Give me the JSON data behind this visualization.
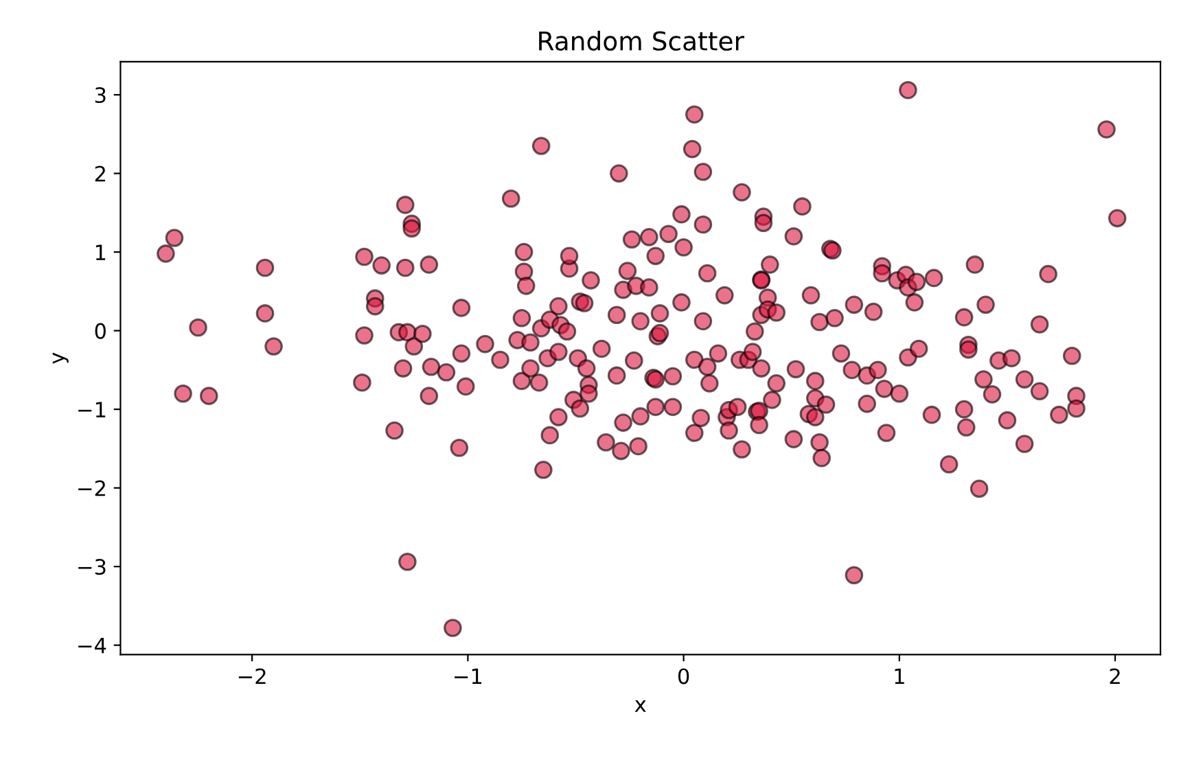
{
  "chart_data": {
    "type": "scatter",
    "title": "Random Scatter",
    "xlabel": "x",
    "ylabel": "y",
    "series": [
      {
        "color": "#dc143c",
        "x": [
          -2.4,
          -2.36,
          -2.32,
          -2.25,
          -2.2,
          -1.94,
          -1.94,
          -1.9,
          -1.49,
          -1.48,
          -1.48,
          -1.43,
          -1.43,
          -1.4,
          -1.34,
          -1.32,
          -1.28,
          -1.29,
          -1.29,
          -1.28,
          -1.26,
          -1.26,
          -1.25,
          -1.21,
          -1.18,
          -1.18,
          -1.3,
          -1.17,
          -1.1,
          -1.07,
          -1.03,
          -1.04,
          -1.03,
          -1.01,
          -0.92,
          -0.85,
          -0.8,
          -0.77,
          -0.75,
          -0.75,
          -0.74,
          -0.74,
          -0.73,
          -0.71,
          -0.71,
          -0.67,
          -0.66,
          -0.66,
          -0.65,
          -0.63,
          -0.62,
          -0.62,
          -0.58,
          -0.58,
          -0.58,
          -0.57,
          -0.54,
          -0.53,
          -0.53,
          -0.51,
          -0.49,
          -0.48,
          -0.48,
          -0.46,
          -0.45,
          -0.44,
          -0.44,
          -0.43,
          -0.38,
          -0.36,
          -0.31,
          -0.31,
          -0.3,
          -0.29,
          -0.28,
          -0.28,
          -0.26,
          -0.24,
          -0.23,
          -0.22,
          -0.21,
          -0.2,
          -0.2,
          -0.16,
          -0.16,
          -0.14,
          -0.13,
          -0.13,
          -0.13,
          -0.12,
          -0.11,
          -0.11,
          -0.07,
          -0.05,
          -0.05,
          -0.01,
          -0.01,
          0.0,
          0.04,
          0.05,
          0.05,
          0.05,
          0.08,
          0.09,
          0.09,
          0.09,
          0.11,
          0.11,
          0.12,
          0.16,
          0.19,
          0.2,
          0.21,
          0.21,
          0.25,
          0.26,
          0.27,
          0.27,
          0.3,
          0.32,
          0.33,
          0.34,
          0.35,
          0.35,
          0.36,
          0.36,
          0.36,
          0.36,
          0.37,
          0.37,
          0.39,
          0.39,
          0.4,
          0.41,
          0.43,
          0.43,
          0.51,
          0.51,
          0.52,
          0.55,
          0.58,
          0.59,
          0.61,
          0.61,
          0.61,
          0.63,
          0.63,
          0.64,
          0.66,
          0.68,
          0.69,
          0.7,
          0.73,
          0.78,
          0.79,
          0.79,
          0.85,
          0.85,
          0.88,
          0.9,
          0.92,
          0.92,
          0.93,
          0.94,
          0.99,
          1.0,
          1.03,
          1.04,
          1.04,
          1.04,
          1.07,
          1.08,
          1.09,
          1.15,
          1.16,
          1.23,
          1.3,
          1.3,
          1.31,
          1.32,
          1.32,
          1.35,
          1.37,
          1.39,
          1.4,
          1.43,
          1.46,
          1.5,
          1.52,
          1.58,
          1.58,
          1.65,
          1.65,
          1.69,
          1.74,
          1.8,
          1.82,
          1.82,
          1.96,
          2.01
        ],
        "values": [
          0.98,
          1.18,
          -0.8,
          0.04,
          -0.83,
          0.8,
          0.22,
          -0.2,
          -0.66,
          -0.06,
          0.94,
          0.41,
          0.31,
          0.83,
          -1.27,
          -0.02,
          -0.02,
          1.6,
          0.8,
          -2.94,
          1.36,
          1.3,
          -0.2,
          -0.04,
          0.84,
          -0.83,
          -0.48,
          -0.46,
          -0.53,
          -3.78,
          0.29,
          -1.49,
          -0.29,
          -0.71,
          -0.17,
          -0.37,
          1.68,
          -0.12,
          0.16,
          -0.64,
          1.0,
          0.75,
          0.57,
          -0.15,
          -0.48,
          -0.66,
          2.35,
          0.03,
          -1.77,
          -0.35,
          0.14,
          -1.33,
          -1.1,
          0.31,
          -0.27,
          0.07,
          -0.01,
          0.79,
          0.95,
          -0.88,
          -0.35,
          -0.99,
          0.37,
          0.35,
          -0.48,
          -0.69,
          -0.8,
          0.64,
          -0.23,
          -1.42,
          0.2,
          -0.57,
          2.0,
          -1.53,
          0.52,
          -1.17,
          0.76,
          1.16,
          -0.38,
          0.57,
          -1.47,
          0.12,
          -1.09,
          0.55,
          1.19,
          -0.6,
          -0.62,
          0.95,
          -0.97,
          -0.07,
          -0.03,
          0.22,
          1.23,
          -0.58,
          -0.97,
          1.48,
          0.36,
          1.06,
          2.31,
          -0.37,
          -1.3,
          2.75,
          -1.11,
          2.02,
          0.12,
          1.35,
          0.73,
          -0.46,
          -0.67,
          -0.29,
          0.45,
          -1.1,
          -1.01,
          -1.27,
          -0.97,
          -0.37,
          1.76,
          -1.51,
          -0.37,
          -0.27,
          -0.01,
          -1.03,
          -1.02,
          -1.2,
          0.65,
          0.64,
          0.2,
          -0.48,
          1.45,
          1.37,
          0.42,
          0.27,
          0.84,
          -0.88,
          0.23,
          -0.67,
          1.2,
          -1.38,
          -0.49,
          1.58,
          -1.06,
          0.45,
          -0.86,
          -0.64,
          -1.1,
          -1.42,
          0.11,
          -1.62,
          -0.94,
          1.04,
          1.02,
          0.16,
          -0.29,
          -0.5,
          0.33,
          -3.11,
          -0.93,
          -0.57,
          0.24,
          -0.5,
          0.82,
          0.73,
          -0.74,
          -1.3,
          0.64,
          -0.8,
          0.71,
          3.06,
          0.55,
          -0.34,
          0.36,
          0.62,
          -0.23,
          -1.07,
          0.67,
          -1.7,
          -1.0,
          0.17,
          -1.23,
          -0.18,
          -0.24,
          0.84,
          -2.01,
          -0.62,
          0.33,
          -0.81,
          -0.38,
          -1.14,
          -0.35,
          -1.44,
          -0.62,
          0.08,
          -0.77,
          0.72,
          -1.07,
          -0.32,
          -0.83,
          -0.99,
          2.56,
          1.43
        ]
      }
    ],
    "xlim": [
      -2.61,
      2.21
    ],
    "ylim": [
      -4.12,
      3.42
    ],
    "xticks": [
      -2,
      -1,
      0,
      1,
      2
    ],
    "yticks": [
      -4,
      -3,
      -2,
      -1,
      0,
      1,
      2,
      3
    ],
    "marker": "circle",
    "grid": false
  }
}
